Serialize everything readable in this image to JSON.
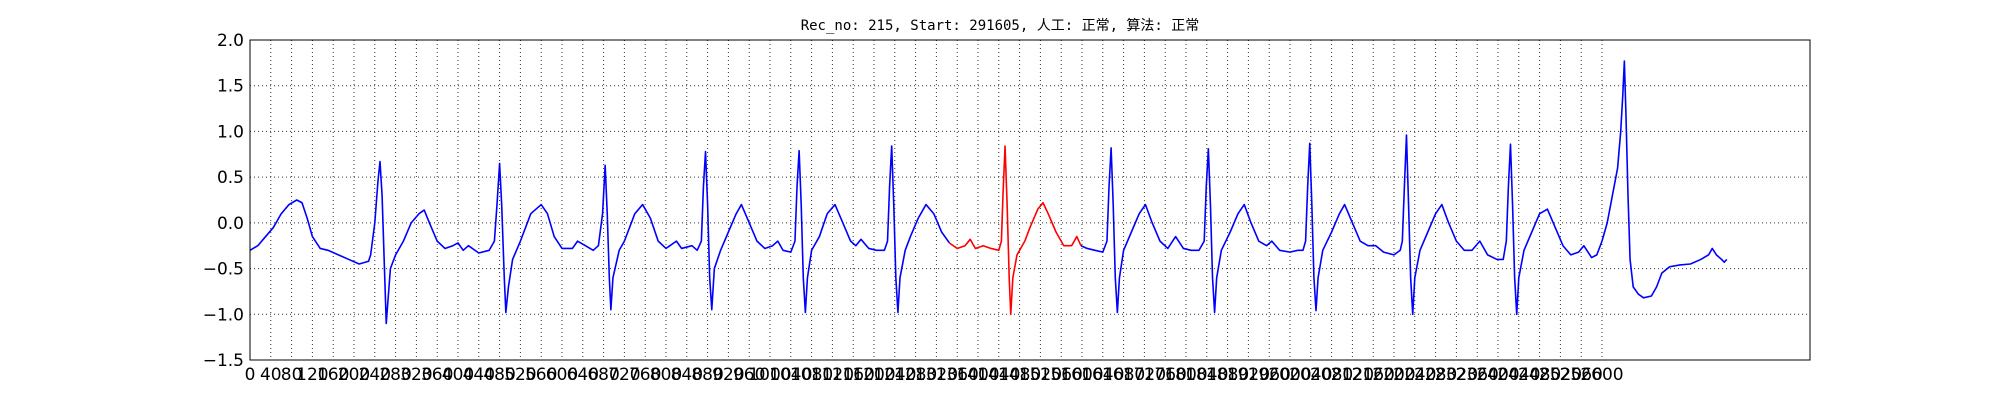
{
  "chart_data": {
    "type": "line",
    "title": "Rec_no: 215, Start: 291605, 人工: 正常, 算法: 正常",
    "xlabel": "",
    "ylabel": "",
    "xlim": [
      0,
      3000
    ],
    "ylim": [
      -1.5,
      2.0
    ],
    "grid": true,
    "y_ticks": [
      "2.0",
      "1.5",
      "1.0",
      "0.5",
      "0.0",
      "−0.5",
      "−1.0",
      "−1.5"
    ],
    "x_ticks": [
      "0",
      "40",
      "80",
      "120",
      "160",
      "200",
      "240",
      "280",
      "320",
      "360",
      "400",
      "440",
      "480",
      "520",
      "560",
      "600",
      "640",
      "680",
      "720",
      "760",
      "800",
      "840",
      "880",
      "920",
      "960",
      "1000",
      "1040",
      "1080",
      "1120",
      "1160",
      "1200",
      "1240",
      "1280",
      "1320",
      "1360",
      "1400",
      "1440",
      "1480",
      "1520",
      "1560",
      "1600",
      "1640",
      "1680",
      "1720",
      "1760",
      "1800",
      "1840",
      "1880",
      "1920",
      "1960",
      "2000",
      "2040",
      "2080",
      "2120",
      "2160",
      "2200",
      "2240",
      "2280",
      "2320",
      "2360",
      "2400",
      "2440",
      "2480",
      "2520",
      "2560",
      "2600"
    ],
    "series": [
      {
        "color": "#0000ff",
        "points": [
          [
            0,
            -0.3
          ],
          [
            15,
            -0.25
          ],
          [
            30,
            -0.15
          ],
          [
            45,
            -0.05
          ],
          [
            60,
            0.1
          ],
          [
            75,
            0.2
          ],
          [
            90,
            0.25
          ],
          [
            100,
            0.22
          ],
          [
            110,
            0.05
          ],
          [
            120,
            -0.15
          ],
          [
            135,
            -0.28
          ],
          [
            150,
            -0.3
          ],
          [
            170,
            -0.35
          ],
          [
            190,
            -0.4
          ],
          [
            210,
            -0.45
          ],
          [
            228,
            -0.42
          ],
          [
            232,
            -0.35
          ],
          [
            240,
            0.0
          ],
          [
            246,
            0.45
          ],
          [
            250,
            0.67
          ],
          [
            254,
            0.3
          ],
          [
            258,
            -0.4
          ],
          [
            262,
            -1.1
          ],
          [
            266,
            -0.8
          ],
          [
            270,
            -0.5
          ],
          [
            280,
            -0.35
          ],
          [
            295,
            -0.2
          ],
          [
            310,
            0.0
          ],
          [
            325,
            0.1
          ],
          [
            335,
            0.14
          ],
          [
            345,
            0.0
          ],
          [
            360,
            -0.2
          ],
          [
            375,
            -0.28
          ],
          [
            390,
            -0.25
          ],
          [
            400,
            -0.22
          ],
          [
            410,
            -0.3
          ],
          [
            420,
            -0.25
          ],
          [
            440,
            -0.33
          ],
          [
            460,
            -0.3
          ],
          [
            470,
            -0.2
          ],
          [
            475,
            0.2
          ],
          [
            480,
            0.65
          ],
          [
            484,
            0.2
          ],
          [
            489,
            -0.6
          ],
          [
            492,
            -0.98
          ],
          [
            497,
            -0.7
          ],
          [
            505,
            -0.4
          ],
          [
            520,
            -0.2
          ],
          [
            540,
            0.1
          ],
          [
            560,
            0.2
          ],
          [
            572,
            0.1
          ],
          [
            585,
            -0.15
          ],
          [
            600,
            -0.28
          ],
          [
            620,
            -0.28
          ],
          [
            630,
            -0.2
          ],
          [
            645,
            -0.25
          ],
          [
            660,
            -0.3
          ],
          [
            670,
            -0.25
          ],
          [
            678,
            0.1
          ],
          [
            683,
            0.63
          ],
          [
            687,
            0.1
          ],
          [
            691,
            -0.6
          ],
          [
            694,
            -0.95
          ],
          [
            698,
            -0.6
          ],
          [
            710,
            -0.3
          ],
          [
            720,
            -0.2
          ],
          [
            740,
            0.1
          ],
          [
            755,
            0.2
          ],
          [
            770,
            0.05
          ],
          [
            785,
            -0.2
          ],
          [
            800,
            -0.28
          ],
          [
            820,
            -0.2
          ],
          [
            830,
            -0.28
          ],
          [
            850,
            -0.25
          ],
          [
            860,
            -0.3
          ],
          [
            868,
            -0.2
          ],
          [
            872,
            0.4
          ],
          [
            876,
            0.78
          ],
          [
            880,
            0.2
          ],
          [
            884,
            -0.6
          ],
          [
            888,
            -0.95
          ],
          [
            893,
            -0.5
          ],
          [
            905,
            -0.3
          ],
          [
            920,
            -0.1
          ],
          [
            935,
            0.1
          ],
          [
            945,
            0.2
          ],
          [
            960,
            0.0
          ],
          [
            975,
            -0.2
          ],
          [
            990,
            -0.28
          ],
          [
            1005,
            -0.25
          ],
          [
            1015,
            -0.2
          ],
          [
            1025,
            -0.3
          ],
          [
            1040,
            -0.32
          ],
          [
            1048,
            -0.2
          ],
          [
            1052,
            0.4
          ],
          [
            1056,
            0.79
          ],
          [
            1060,
            0.2
          ],
          [
            1064,
            -0.6
          ],
          [
            1068,
            -0.98
          ],
          [
            1072,
            -0.6
          ],
          [
            1080,
            -0.3
          ],
          [
            1095,
            -0.15
          ],
          [
            1110,
            0.1
          ],
          [
            1125,
            0.2
          ],
          [
            1140,
            0.0
          ],
          [
            1155,
            -0.2
          ],
          [
            1165,
            -0.25
          ],
          [
            1175,
            -0.18
          ],
          [
            1190,
            -0.28
          ],
          [
            1205,
            -0.3
          ],
          [
            1220,
            -0.3
          ],
          [
            1226,
            -0.2
          ],
          [
            1230,
            0.4
          ],
          [
            1234,
            0.84
          ],
          [
            1238,
            0.2
          ],
          [
            1242,
            -0.6
          ],
          [
            1246,
            -0.98
          ],
          [
            1250,
            -0.6
          ],
          [
            1260,
            -0.3
          ],
          [
            1270,
            -0.15
          ],
          [
            1285,
            0.05
          ],
          [
            1300,
            0.2
          ],
          [
            1315,
            0.1
          ],
          [
            1330,
            -0.1
          ],
          [
            1345,
            -0.22
          ]
        ]
      },
      {
        "color": "#ff0000",
        "points": [
          [
            1345,
            -0.22
          ],
          [
            1360,
            -0.28
          ],
          [
            1375,
            -0.25
          ],
          [
            1385,
            -0.18
          ],
          [
            1395,
            -0.28
          ],
          [
            1410,
            -0.25
          ],
          [
            1425,
            -0.28
          ],
          [
            1440,
            -0.3
          ],
          [
            1445,
            -0.2
          ],
          [
            1448,
            0.3
          ],
          [
            1452,
            0.84
          ],
          [
            1456,
            0.2
          ],
          [
            1460,
            -0.6
          ],
          [
            1463,
            -1.0
          ],
          [
            1467,
            -0.6
          ],
          [
            1475,
            -0.35
          ],
          [
            1490,
            -0.2
          ],
          [
            1500,
            -0.05
          ],
          [
            1515,
            0.15
          ],
          [
            1525,
            0.22
          ],
          [
            1535,
            0.1
          ],
          [
            1550,
            -0.1
          ],
          [
            1565,
            -0.25
          ],
          [
            1580,
            -0.25
          ],
          [
            1590,
            -0.15
          ],
          [
            1598,
            -0.25
          ]
        ]
      },
      {
        "color": "#0000ff",
        "points": [
          [
            1598,
            -0.25
          ],
          [
            1610,
            -0.28
          ],
          [
            1625,
            -0.3
          ],
          [
            1640,
            -0.32
          ],
          [
            1648,
            -0.2
          ],
          [
            1652,
            0.4
          ],
          [
            1656,
            0.82
          ],
          [
            1660,
            0.2
          ],
          [
            1664,
            -0.6
          ],
          [
            1668,
            -0.98
          ],
          [
            1672,
            -0.6
          ],
          [
            1680,
            -0.3
          ],
          [
            1695,
            -0.1
          ],
          [
            1710,
            0.1
          ],
          [
            1722,
            0.2
          ],
          [
            1735,
            0.0
          ],
          [
            1750,
            -0.2
          ],
          [
            1765,
            -0.28
          ],
          [
            1780,
            -0.15
          ],
          [
            1795,
            -0.28
          ],
          [
            1810,
            -0.3
          ],
          [
            1825,
            -0.3
          ],
          [
            1835,
            -0.2
          ],
          [
            1839,
            0.4
          ],
          [
            1843,
            0.81
          ],
          [
            1847,
            0.2
          ],
          [
            1851,
            -0.6
          ],
          [
            1855,
            -0.98
          ],
          [
            1859,
            -0.6
          ],
          [
            1868,
            -0.3
          ],
          [
            1885,
            -0.1
          ],
          [
            1900,
            0.1
          ],
          [
            1912,
            0.2
          ],
          [
            1925,
            0.0
          ],
          [
            1940,
            -0.2
          ],
          [
            1955,
            -0.25
          ],
          [
            1965,
            -0.2
          ],
          [
            1980,
            -0.3
          ],
          [
            2000,
            -0.32
          ],
          [
            2015,
            -0.3
          ],
          [
            2025,
            -0.3
          ],
          [
            2030,
            -0.2
          ],
          [
            2034,
            0.4
          ],
          [
            2038,
            0.87
          ],
          [
            2042,
            0.2
          ],
          [
            2046,
            -0.6
          ],
          [
            2050,
            -0.96
          ],
          [
            2054,
            -0.6
          ],
          [
            2063,
            -0.3
          ],
          [
            2080,
            -0.1
          ],
          [
            2095,
            0.1
          ],
          [
            2105,
            0.2
          ],
          [
            2120,
            0.0
          ],
          [
            2135,
            -0.2
          ],
          [
            2150,
            -0.25
          ],
          [
            2165,
            -0.25
          ],
          [
            2180,
            -0.32
          ],
          [
            2200,
            -0.35
          ],
          [
            2212,
            -0.3
          ],
          [
            2216,
            -0.2
          ],
          [
            2220,
            0.4
          ],
          [
            2224,
            0.96
          ],
          [
            2228,
            0.2
          ],
          [
            2232,
            -0.6
          ],
          [
            2236,
            -1.0
          ],
          [
            2240,
            -0.6
          ],
          [
            2250,
            -0.3
          ],
          [
            2265,
            -0.1
          ],
          [
            2280,
            0.1
          ],
          [
            2292,
            0.2
          ],
          [
            2305,
            0.0
          ],
          [
            2320,
            -0.2
          ],
          [
            2335,
            -0.3
          ],
          [
            2350,
            -0.3
          ],
          [
            2365,
            -0.2
          ],
          [
            2380,
            -0.35
          ],
          [
            2398,
            -0.4
          ],
          [
            2410,
            -0.4
          ],
          [
            2416,
            -0.2
          ],
          [
            2420,
            0.4
          ],
          [
            2424,
            0.86
          ],
          [
            2428,
            0.2
          ],
          [
            2432,
            -0.6
          ],
          [
            2436,
            -1.0
          ],
          [
            2440,
            -0.6
          ],
          [
            2450,
            -0.3
          ],
          [
            2465,
            -0.1
          ],
          [
            2480,
            0.1
          ],
          [
            2495,
            0.15
          ],
          [
            2510,
            -0.05
          ],
          [
            2525,
            -0.25
          ],
          [
            2540,
            -0.35
          ],
          [
            2555,
            -0.32
          ],
          [
            2565,
            -0.25
          ],
          [
            2580,
            -0.38
          ],
          [
            2590,
            -0.35
          ],
          [
            2600,
            -0.2
          ],
          [
            2610,
            0.0
          ],
          [
            2620,
            0.3
          ],
          [
            2630,
            0.6
          ],
          [
            2636,
            1.0
          ],
          [
            2640,
            1.4
          ],
          [
            2643,
            1.77
          ],
          [
            2646,
            1.2
          ],
          [
            2650,
            0.3
          ],
          [
            2654,
            -0.4
          ],
          [
            2660,
            -0.7
          ],
          [
            2670,
            -0.78
          ],
          [
            2680,
            -0.82
          ],
          [
            2695,
            -0.8
          ],
          [
            2705,
            -0.7
          ],
          [
            2715,
            -0.55
          ],
          [
            2730,
            -0.48
          ],
          [
            2750,
            -0.46
          ],
          [
            2770,
            -0.45
          ],
          [
            2790,
            -0.4
          ],
          [
            2805,
            -0.35
          ],
          [
            2812,
            -0.28
          ],
          [
            2820,
            -0.35
          ],
          [
            2830,
            -0.4
          ],
          [
            2835,
            -0.43
          ],
          [
            2840,
            -0.4
          ]
        ]
      }
    ]
  }
}
